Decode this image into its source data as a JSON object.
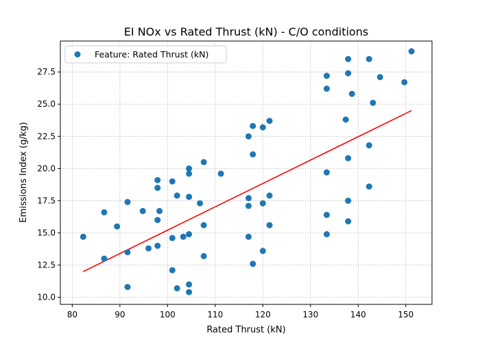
{
  "chart_data": {
    "type": "scatter",
    "title": "EI NOx vs Rated Thrust (kN) - C/O conditions",
    "xlabel": "Rated Thrust (kN)",
    "ylabel": "Emissions Index (g/kg)",
    "xlim": [
      77.5,
      155.5
    ],
    "ylim": [
      9.45,
      29.9
    ],
    "xticks": [
      80,
      90,
      100,
      110,
      120,
      130,
      140,
      150
    ],
    "yticks": [
      10.0,
      12.5,
      15.0,
      17.5,
      20.0,
      22.5,
      25.0,
      27.5
    ],
    "xtick_labels": [
      "80",
      "90",
      "100",
      "110",
      "120",
      "130",
      "140",
      "150"
    ],
    "ytick_labels": [
      "10.0",
      "12.5",
      "15.0",
      "17.5",
      "20.0",
      "22.5",
      "25.0",
      "27.5"
    ],
    "grid": true,
    "legend_position": "top-left",
    "legend": [
      "Feature: Rated Thrust (kN)"
    ],
    "point_color": "#1f77b4",
    "line_color": "#ff0000",
    "series": [
      {
        "name": "Feature: Rated Thrust (kN)",
        "points": [
          [
            82.3,
            14.7
          ],
          [
            86.7,
            16.6
          ],
          [
            86.7,
            13.0
          ],
          [
            89.4,
            15.5
          ],
          [
            91.6,
            17.4
          ],
          [
            91.6,
            13.5
          ],
          [
            91.6,
            10.8
          ],
          [
            94.8,
            16.7
          ],
          [
            96.0,
            13.8
          ],
          [
            97.9,
            19.1
          ],
          [
            97.9,
            18.5
          ],
          [
            97.9,
            16.0
          ],
          [
            97.9,
            14.0
          ],
          [
            98.3,
            16.7
          ],
          [
            101.0,
            19.0
          ],
          [
            101.0,
            14.6
          ],
          [
            101.0,
            12.1
          ],
          [
            102.0,
            17.9
          ],
          [
            102.0,
            10.7
          ],
          [
            103.3,
            14.7
          ],
          [
            104.5,
            20.0
          ],
          [
            104.5,
            19.6
          ],
          [
            104.5,
            17.8
          ],
          [
            104.5,
            14.9
          ],
          [
            104.5,
            11.0
          ],
          [
            104.5,
            10.4
          ],
          [
            106.8,
            17.3
          ],
          [
            107.6,
            20.5
          ],
          [
            107.6,
            15.6
          ],
          [
            107.6,
            13.2
          ],
          [
            111.2,
            19.6
          ],
          [
            117.0,
            22.5
          ],
          [
            117.0,
            17.7
          ],
          [
            117.0,
            17.1
          ],
          [
            117.0,
            14.7
          ],
          [
            117.9,
            23.3
          ],
          [
            117.9,
            21.1
          ],
          [
            117.9,
            12.6
          ],
          [
            120.0,
            23.2
          ],
          [
            120.0,
            17.3
          ],
          [
            120.0,
            13.6
          ],
          [
            121.4,
            23.7
          ],
          [
            121.4,
            17.9
          ],
          [
            121.4,
            15.6
          ],
          [
            133.4,
            27.2
          ],
          [
            133.4,
            26.2
          ],
          [
            133.4,
            19.7
          ],
          [
            133.4,
            16.4
          ],
          [
            133.4,
            14.9
          ],
          [
            137.4,
            23.8
          ],
          [
            137.9,
            28.5
          ],
          [
            137.9,
            27.4
          ],
          [
            137.9,
            20.8
          ],
          [
            137.9,
            17.5
          ],
          [
            137.9,
            15.9
          ],
          [
            138.7,
            25.8
          ],
          [
            142.3,
            28.5
          ],
          [
            142.3,
            21.8
          ],
          [
            142.3,
            18.6
          ],
          [
            143.1,
            25.1
          ],
          [
            144.6,
            27.1
          ],
          [
            149.7,
            26.7
          ],
          [
            151.2,
            29.1
          ]
        ]
      }
    ],
    "fit_line": {
      "points": [
        [
          82.3,
          12.0
        ],
        [
          151.2,
          24.5
        ]
      ]
    }
  }
}
